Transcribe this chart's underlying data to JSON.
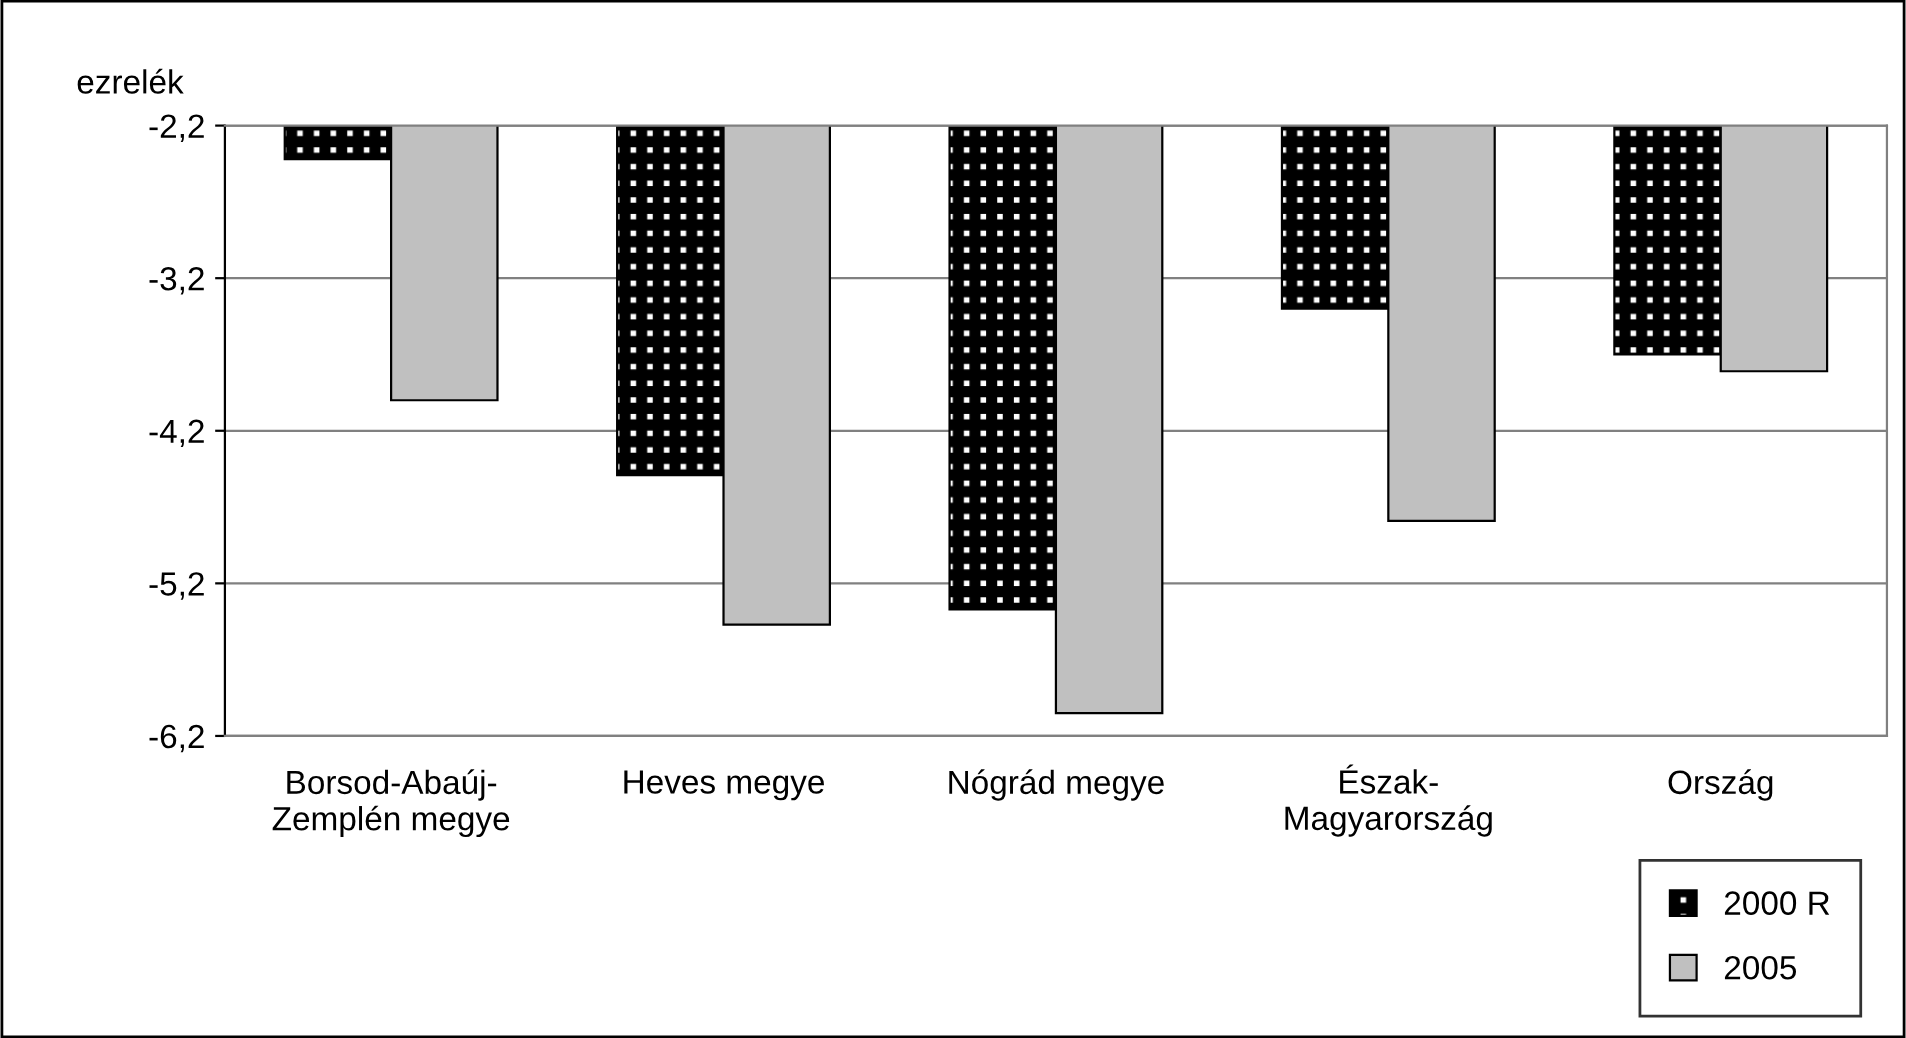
{
  "chart_data": {
    "type": "bar",
    "ylabel": "ezrelék",
    "categories": [
      "Borsod-Abaúj-\nZemplén megye",
      "Heves megye",
      "Nógrád megye",
      "Észak-\nMagyarország",
      "Ország"
    ],
    "series": [
      {
        "name": "2000 R",
        "color": "#000000",
        "values": [
          -2.42,
          -4.49,
          -5.37,
          -3.4,
          -3.7
        ]
      },
      {
        "name": "2005",
        "color": "#c0c0c0",
        "values": [
          -4.0,
          -5.47,
          -6.05,
          -4.79,
          -3.81
        ]
      }
    ],
    "ylim": [
      -6.2,
      -2.2
    ],
    "yticks": [
      {
        "value": -2.2,
        "label": "-2,2"
      },
      {
        "value": -3.2,
        "label": "-3,2"
      },
      {
        "value": -4.2,
        "label": "-4,2"
      },
      {
        "value": -5.2,
        "label": "-5,2"
      },
      {
        "value": -6.2,
        "label": "-6,2"
      }
    ],
    "grid": "y",
    "legend": "bottom right"
  }
}
